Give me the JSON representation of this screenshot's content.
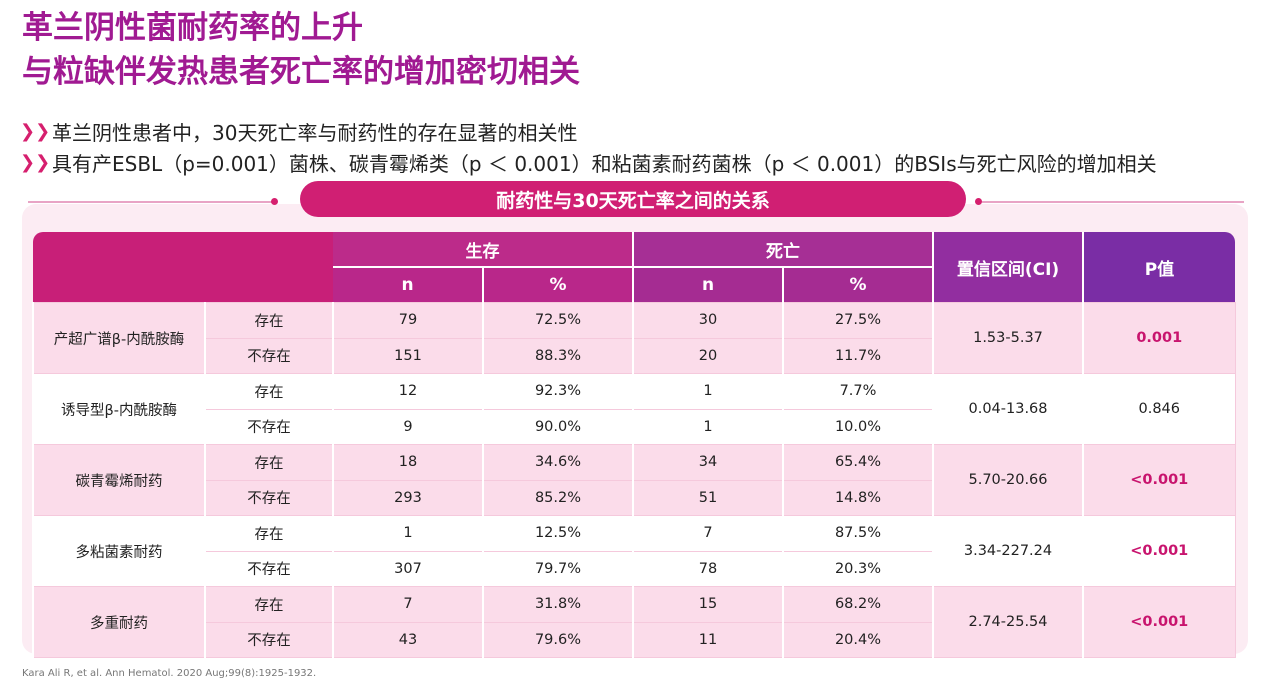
{
  "title": {
    "line1": "革兰阴性菌耐药率的上升",
    "line2": "与粒缺伴发热患者死亡率的增加密切相关"
  },
  "bullets": [
    "革兰阴性患者中，30天死亡率与耐药性的存在显著的相关性",
    "具有产ESBL（p=0.001）菌株、碳青霉烯类（p ＜ 0.001）和粘菌素耐药菌株（p ＜ 0.001）的BSIs与死亡风险的增加相关"
  ],
  "section_title": "耐药性与30天死亡率之间的关系",
  "table": {
    "headers": {
      "survival": "生存",
      "death": "死亡",
      "ci": "置信区间(CI)",
      "p": "P值",
      "n": "n",
      "pct": "%"
    },
    "groups": [
      {
        "name": "产超广谱β-内酰胺酶",
        "rows": [
          {
            "status": "存在",
            "s_n": "79",
            "s_pct": "72.5%",
            "d_n": "30",
            "d_pct": "27.5%"
          },
          {
            "status": "不存在",
            "s_n": "151",
            "s_pct": "88.3%",
            "d_n": "20",
            "d_pct": "11.7%"
          }
        ],
        "ci": "1.53-5.37",
        "p": "0.001"
      },
      {
        "name": "诱导型β-内酰胺酶",
        "rows": [
          {
            "status": "存在",
            "s_n": "12",
            "s_pct": "92.3%",
            "d_n": "1",
            "d_pct": "7.7%"
          },
          {
            "status": "不存在",
            "s_n": "9",
            "s_pct": "90.0%",
            "d_n": "1",
            "d_pct": "10.0%"
          }
        ],
        "ci": "0.04-13.68",
        "p": "0.846"
      },
      {
        "name": "碳青霉烯耐药",
        "rows": [
          {
            "status": "存在",
            "s_n": "18",
            "s_pct": "34.6%",
            "d_n": "34",
            "d_pct": "65.4%"
          },
          {
            "status": "不存在",
            "s_n": "293",
            "s_pct": "85.2%",
            "d_n": "51",
            "d_pct": "14.8%"
          }
        ],
        "ci": "5.70-20.66",
        "p": "<0.001"
      },
      {
        "name": "多粘菌素耐药",
        "rows": [
          {
            "status": "存在",
            "s_n": "1",
            "s_pct": "12.5%",
            "d_n": "7",
            "d_pct": "87.5%"
          },
          {
            "status": "不存在",
            "s_n": "307",
            "s_pct": "79.7%",
            "d_n": "78",
            "d_pct": "20.3%"
          }
        ],
        "ci": "3.34-227.24",
        "p": "<0.001"
      },
      {
        "name": "多重耐药",
        "rows": [
          {
            "status": "存在",
            "s_n": "7",
            "s_pct": "31.8%",
            "d_n": "15",
            "d_pct": "68.2%"
          },
          {
            "status": "不存在",
            "s_n": "43",
            "s_pct": "79.6%",
            "d_n": "11",
            "d_pct": "20.4%"
          }
        ],
        "ci": "2.74-25.54",
        "p": "<0.001"
      }
    ]
  },
  "footer": "Kara Ali R, et al. Ann Hematol. 2020 Aug;99(8):1925-1932.",
  "colors": {
    "title": "#a01a92",
    "accent": "#d01f73",
    "significant": "#c8146e",
    "row_pink": "#fbdcea"
  }
}
